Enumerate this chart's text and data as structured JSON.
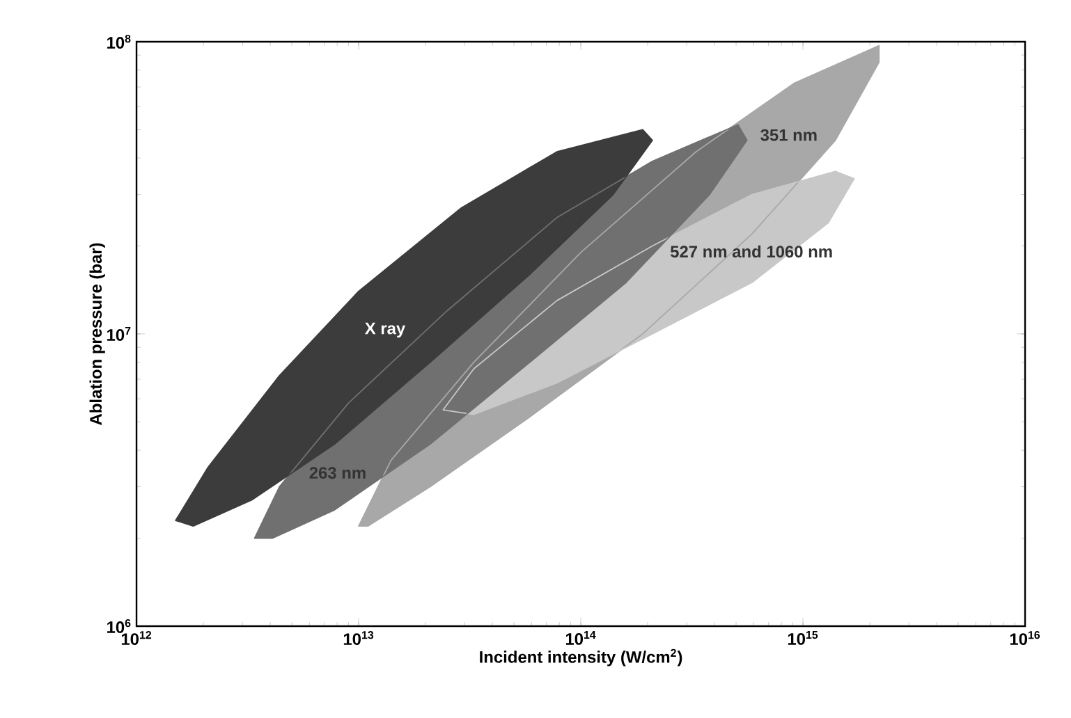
{
  "chart_data": {
    "type": "area",
    "xlabel": "Incident intensity (W/cm$^{2}$)",
    "ylabel": "Ablation pressure (bar)",
    "log": "xy",
    "xlim": [
      1000000000000.0,
      1e+16
    ],
    "ylim": [
      1000000.0,
      100000000.0
    ],
    "xticks": [
      {
        "value": 1000000000000.0,
        "label": "10$^{12}$"
      },
      {
        "value": 10000000000000.0,
        "label": "10$^{13}$"
      },
      {
        "value": 100000000000000.0,
        "label": "10$^{14}$"
      },
      {
        "value": 1000000000000000.0,
        "label": "10$^{15}$"
      },
      {
        "value": 1e+16,
        "label": "10$^{16}$"
      }
    ],
    "yticks": [
      {
        "value": 1000000.0,
        "label": "10$^{6}$"
      },
      {
        "value": 10000000.0,
        "label": "10$^{7}$"
      },
      {
        "value": 100000000.0,
        "label": "10$^{8}$"
      }
    ],
    "series": [
      {
        "name": "351 nm",
        "color": "#a8a8a8",
        "x": [
          10000000000000.0,
          14000000000000.0,
          33000000000000.0,
          100000000000000.0,
          330000000000000.0,
          910000000000000.0,
          2200000000000000.0,
          2200000000000000.0,
          1400000000000000.0,
          590000000000000.0,
          190000000000000.0,
          59000000000000.0,
          21000000000000.0,
          11000000000000.0
        ],
        "values": [
          2200000.0,
          3700000.0,
          8000000.0,
          19000000.0,
          42000000.0,
          72000000.0,
          97000000.0,
          85000000.0,
          46000000.0,
          22000000.0,
          10000000.0,
          5200000.0,
          3000000.0,
          2200000.0
        ]
      },
      {
        "name": "527 nm and 1060 nm",
        "color": "#c8c8c8",
        "x": [
          24000000000000.0,
          33000000000000.0,
          78000000000000.0,
          210000000000000.0,
          590000000000000.0,
          1400000000000000.0,
          1700000000000000.0,
          1300000000000000.0,
          590000000000000.0,
          210000000000000.0,
          78000000000000.0,
          33000000000000.0
        ],
        "values": [
          5500000.0,
          7600000.0,
          13000000.0,
          20000000.0,
          30000000.0,
          36000000.0,
          34000000.0,
          24000000.0,
          15000000.0,
          10000000.0,
          6800000.0,
          5300000.0
        ]
      },
      {
        "name": "263 nm",
        "color": "#707070",
        "x": [
          3400000000000.0,
          4400000000000.0,
          9000000000000.0,
          25000000000000.0,
          78000000000000.0,
          210000000000000.0,
          510000000000000.0,
          560000000000000.0,
          380000000000000.0,
          160000000000000.0,
          59000000000000.0,
          21000000000000.0,
          7800000000000.0,
          4100000000000.0
        ],
        "values": [
          2000000.0,
          3000000.0,
          5800000.0,
          12000000.0,
          25000000.0,
          39000000.0,
          52000000.0,
          46000000.0,
          30000000.0,
          15000000.0,
          8000000.0,
          4200000.0,
          2500000.0,
          2000000.0
        ]
      },
      {
        "name": "X ray",
        "color": "#3c3c3c",
        "x": [
          1500000000000.0,
          2100000000000.0,
          4400000000000.0,
          10000000000000.0,
          29000000000000.0,
          78000000000000.0,
          190000000000000.0,
          210000000000000.0,
          140000000000000.0,
          59000000000000.0,
          21000000000000.0,
          7800000000000.0,
          3300000000000.0,
          1800000000000.0
        ],
        "values": [
          2300000.0,
          3500000.0,
          7200000.0,
          14000000.0,
          27000000.0,
          42000000.0,
          50000000.0,
          46000000.0,
          30000000.0,
          16000000.0,
          8000000.0,
          4200000.0,
          2700000.0,
          2200000.0
        ]
      }
    ]
  }
}
